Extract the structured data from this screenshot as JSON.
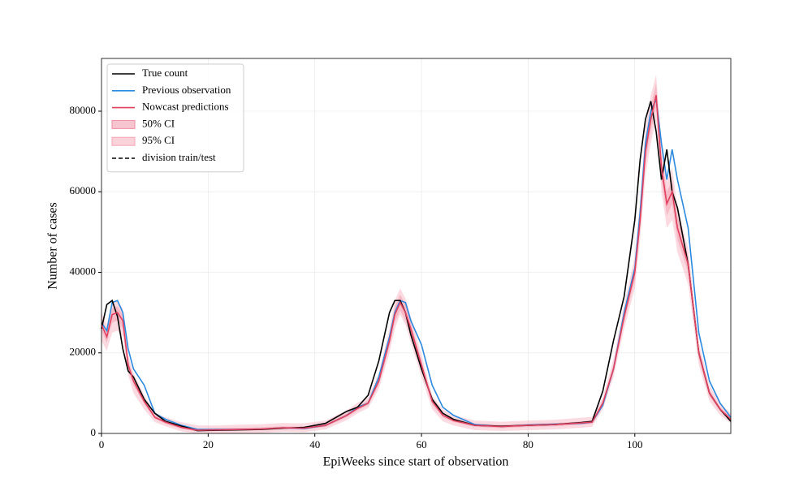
{
  "chart_data": {
    "type": "line",
    "xlabel": "EpiWeeks since start of observation",
    "ylabel": "Number of cases",
    "x": [
      0,
      1,
      2,
      3,
      4,
      5,
      6,
      8,
      10,
      12,
      15,
      18,
      22,
      26,
      30,
      34,
      38,
      42,
      46,
      48,
      50,
      52,
      54,
      55,
      56,
      57,
      58,
      60,
      62,
      64,
      66,
      70,
      75,
      80,
      85,
      90,
      92,
      94,
      96,
      98,
      100,
      101,
      102,
      103,
      104,
      105,
      106,
      107,
      108,
      110,
      112,
      114,
      116,
      118
    ],
    "xlim": [
      0,
      118
    ],
    "xticks": [
      0,
      20,
      40,
      60,
      80,
      100
    ],
    "ylim": [
      0,
      93100
    ],
    "yticks": [
      0,
      20000,
      40000,
      60000,
      80000
    ],
    "grid": true,
    "legend": "upper left",
    "bands": [
      {
        "name": "50% CI",
        "color": "#f08ca0",
        "lower": [
          25500,
          22500,
          27500,
          28000,
          26000,
          15800,
          12000,
          7300,
          3600,
          2400,
          1100,
          500,
          600,
          700,
          800,
          1100,
          1000,
          1600,
          4000,
          5700,
          7000,
          12000,
          21500,
          27500,
          30500,
          28000,
          24500,
          15800,
          7200,
          4000,
          2800,
          1600,
          1300,
          1600,
          1800,
          2200,
          2400,
          7000,
          15000,
          27500,
          38000,
          50500,
          67000,
          75000,
          81000,
          63000,
          54000,
          57000,
          48000,
          40000,
          18700,
          9200,
          5500,
          3000
        ],
        "upper": [
          28500,
          25500,
          31000,
          31500,
          29500,
          18000,
          14000,
          8800,
          4600,
          3300,
          1900,
          1200,
          1300,
          1400,
          1500,
          1800,
          1700,
          2500,
          5100,
          6800,
          8200,
          14000,
          24500,
          31500,
          34500,
          32000,
          27500,
          18000,
          8800,
          5000,
          3700,
          2400,
          2100,
          2400,
          2600,
          3000,
          3200,
          8200,
          17000,
          30500,
          42000,
          55500,
          73000,
          81000,
          87000,
          69000,
          60000,
          63000,
          54000,
          44000,
          21200,
          10800,
          6500,
          4000
        ]
      },
      {
        "name": "95% CI",
        "color": "#f5a5b5",
        "lower": [
          23000,
          20500,
          25000,
          25500,
          24000,
          14500,
          10000,
          6000,
          2800,
          1800,
          500,
          0,
          0,
          0,
          100,
          400,
          300,
          1000,
          3300,
          5000,
          6300,
          11000,
          20000,
          26000,
          29500,
          27000,
          22500,
          14000,
          6000,
          3000,
          2000,
          800,
          600,
          800,
          1000,
          1400,
          1600,
          6000,
          14000,
          26000,
          36000,
          48000,
          64000,
          72000,
          78000,
          60000,
          51000,
          53000,
          45000,
          37000,
          17000,
          8000,
          4500,
          2500
        ],
        "upper": [
          30000,
          27000,
          32500,
          33000,
          31000,
          19500,
          15000,
          9500,
          5000,
          4000,
          2800,
          2000,
          2000,
          2200,
          2300,
          2600,
          2500,
          3200,
          5800,
          7600,
          9000,
          15000,
          26000,
          33000,
          36000,
          33500,
          29000,
          19500,
          9500,
          6000,
          4500,
          3200,
          2900,
          3200,
          3400,
          3900,
          4100,
          9000,
          18500,
          32000,
          44000,
          58000,
          76000,
          84000,
          89000,
          72000,
          62500,
          66000,
          56000,
          46000,
          22500,
          12000,
          7500,
          5000
        ]
      }
    ],
    "series": [
      {
        "name": "True count",
        "color": "#000000",
        "values": [
          26000,
          32000,
          33000,
          29000,
          21000,
          15500,
          14000,
          8500,
          5000,
          3000,
          1800,
          700,
          800,
          900,
          1000,
          1300,
          1500,
          2500,
          5500,
          6500,
          9500,
          18000,
          30000,
          33000,
          33000,
          30000,
          24500,
          16000,
          8500,
          5000,
          3500,
          2000,
          1800,
          2000,
          2200,
          2700,
          3000,
          10500,
          23000,
          34000,
          53000,
          68000,
          78000,
          82500,
          75000,
          63000,
          70500,
          60000,
          56000,
          42000,
          20000,
          10000,
          6000,
          3000
        ]
      },
      {
        "name": "Previous observation",
        "color": "#2b8ae0",
        "values": [
          27500,
          25500,
          32500,
          33000,
          30000,
          21000,
          16000,
          12000,
          5000,
          3500,
          2000,
          1000,
          1000,
          1000,
          1100,
          1400,
          1200,
          2000,
          4500,
          6500,
          7500,
          14000,
          24000,
          30000,
          33000,
          32500,
          28000,
          22000,
          12000,
          6500,
          4500,
          2200,
          1700,
          2100,
          2300,
          2500,
          2800,
          7000,
          16000,
          30000,
          41000,
          55000,
          72000,
          80000,
          83000,
          72000,
          63000,
          70500,
          63000,
          51000,
          25000,
          13000,
          7500,
          4000
        ]
      },
      {
        "name": "Nowcast predictions",
        "color": "#e0405e",
        "values": [
          27000,
          24000,
          29500,
          30000,
          28000,
          17000,
          13000,
          8000,
          4000,
          2800,
          1500,
          800,
          900,
          1000,
          1100,
          1400,
          1300,
          2000,
          4500,
          6200,
          7500,
          13000,
          23000,
          29500,
          32500,
          30000,
          26000,
          17000,
          8000,
          4500,
          3200,
          2000,
          1700,
          2000,
          2200,
          2600,
          2800,
          7500,
          16000,
          29000,
          40000,
          53000,
          70000,
          78000,
          84000,
          66000,
          57000,
          60000,
          51000,
          42000,
          20000,
          10000,
          6000,
          3500
        ]
      }
    ],
    "lines": [
      {
        "name": "division train/test",
        "color": "#000000",
        "dash": true
      }
    ]
  }
}
